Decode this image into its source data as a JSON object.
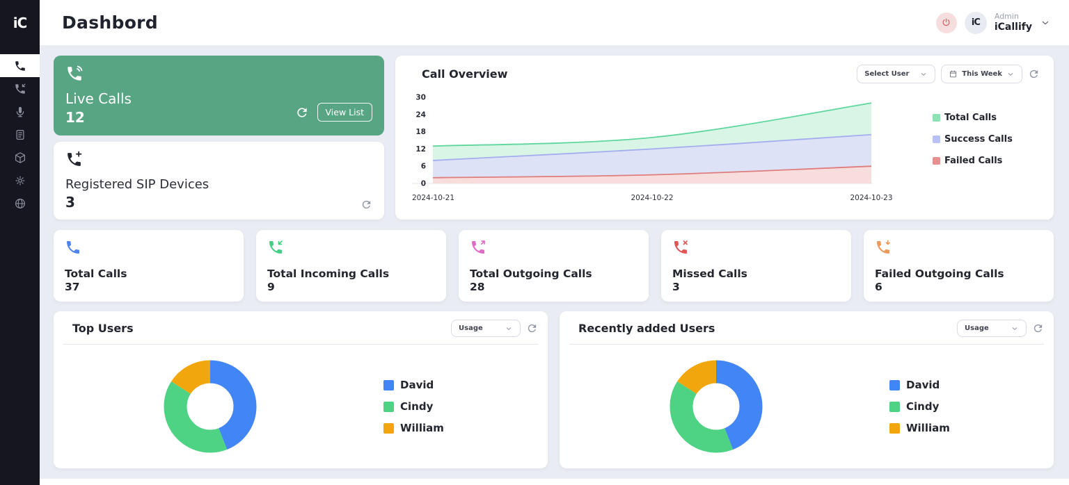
{
  "colors": {
    "sidebar_bg": "#15161f",
    "live_card_green": "#58a583",
    "header_badge_red": "#d95858",
    "header_badge_bg": "#f7dede"
  },
  "sidebar": {
    "logo_text": "iC",
    "items": [
      {
        "icon": "phone-icon",
        "active": true
      },
      {
        "icon": "incoming-call-icon",
        "active": false
      },
      {
        "icon": "microphone-icon",
        "active": false
      },
      {
        "icon": "document-icon",
        "active": false
      },
      {
        "icon": "box-icon",
        "active": false
      },
      {
        "icon": "gear-icon",
        "active": false
      },
      {
        "icon": "globe-icon",
        "active": false
      }
    ]
  },
  "header": {
    "title": "Dashbord",
    "user_role": "Admin",
    "user_name": "iCallify",
    "avatar_text": "iC"
  },
  "live_calls": {
    "title": "Live Calls",
    "value": "12",
    "view_list_label": "View List"
  },
  "sip_devices": {
    "title": "Registered SIP Devices",
    "value": "3"
  },
  "call_overview": {
    "title": "Call Overview",
    "user_filter": "Select User",
    "period_filter": "This Week"
  },
  "stat_cards": [
    {
      "label": "Total Calls",
      "value": "37",
      "icon": "phone-icon",
      "color": "#4f83f1"
    },
    {
      "label": "Total Incoming Calls",
      "value": "9",
      "icon": "incoming-call-icon",
      "color": "#45cf85"
    },
    {
      "label": "Total Outgoing Calls",
      "value": "28",
      "icon": "outgoing-call-icon",
      "color": "#e06cc8"
    },
    {
      "label": "Missed Calls",
      "value": "3",
      "icon": "missed-call-icon",
      "color": "#e25555"
    },
    {
      "label": "Failed Outgoing Calls",
      "value": "6",
      "icon": "failed-call-icon",
      "color": "#ec9a5a"
    }
  ],
  "top_users": {
    "title": "Top Users",
    "filter": "Usage"
  },
  "recent_users": {
    "title": "Recently added Users",
    "filter": "Usage"
  },
  "chart_data": [
    {
      "type": "area",
      "title": "Call Overview",
      "x": [
        "2024-10-21",
        "2024-10-22",
        "2024-10-23"
      ],
      "series": [
        {
          "name": "Total Calls",
          "values": [
            13,
            16,
            28
          ],
          "color": "#8be2b2",
          "line": "#5fd69c",
          "fill": "#d8f5e6"
        },
        {
          "name": "Success Calls",
          "values": [
            8,
            12,
            17
          ],
          "color": "#b9c0f3",
          "line": "#a4adee",
          "fill": "#dde2f7"
        },
        {
          "name": "Failed Calls",
          "values": [
            2,
            3,
            6
          ],
          "color": "#e89090",
          "line": "#df7d7d",
          "fill": "#f8dddd"
        }
      ],
      "ylim": [
        0,
        30
      ],
      "yticks": [
        0,
        6,
        12,
        18,
        24,
        30
      ],
      "legend_position": "right",
      "grid": false
    },
    {
      "type": "pie",
      "title": "Top Users",
      "categories": [
        "David",
        "Cindy",
        "William"
      ],
      "values": [
        44,
        40,
        16
      ],
      "colors": [
        "#4285f4",
        "#4ed283",
        "#f2a60d"
      ],
      "legend_position": "right"
    },
    {
      "type": "pie",
      "title": "Recently added Users",
      "categories": [
        "David",
        "Cindy",
        "William"
      ],
      "values": [
        44,
        40,
        16
      ],
      "colors": [
        "#4285f4",
        "#4ed283",
        "#f2a60d"
      ],
      "legend_position": "right"
    }
  ]
}
